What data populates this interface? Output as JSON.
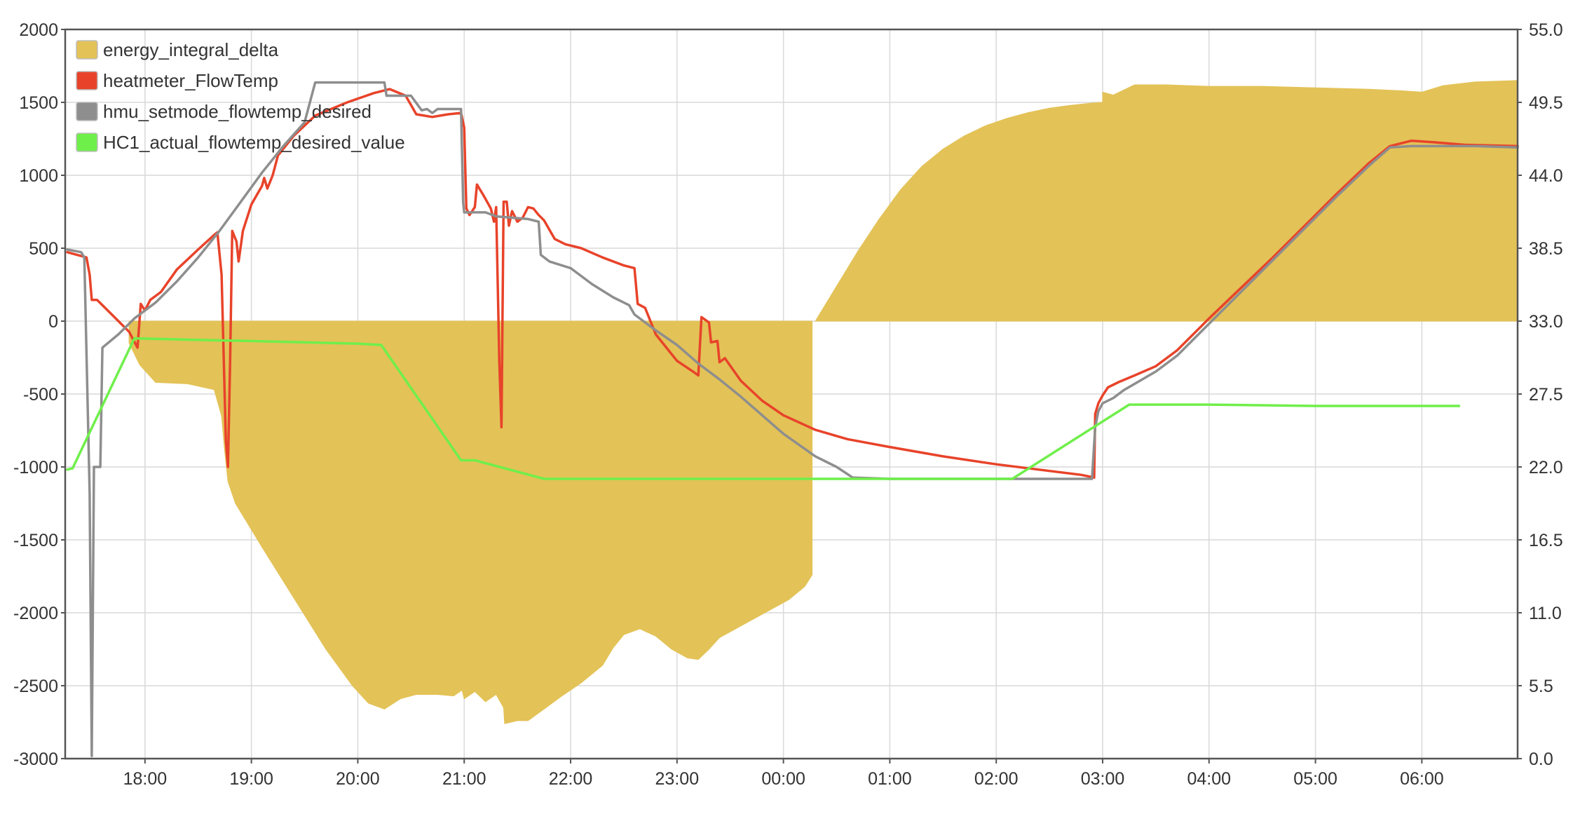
{
  "chart_data": {
    "type": "line",
    "x_ticks": [
      "18:00",
      "19:00",
      "20:00",
      "21:00",
      "22:00",
      "23:00",
      "00:00",
      "01:00",
      "02:00",
      "03:00",
      "04:00",
      "05:00",
      "06:00"
    ],
    "x_range_hours": [
      17.25,
      30.9
    ],
    "y_left": {
      "range": [
        -3000,
        2000
      ],
      "ticks": [
        "2000",
        "1500",
        "1000",
        "500",
        "0",
        "-500",
        "-1000",
        "-1500",
        "-2000",
        "-2500",
        "-3000"
      ]
    },
    "y_right": {
      "range": [
        0,
        55
      ],
      "ticks": [
        "55.0",
        "49.5",
        "44.0",
        "38.5",
        "33.0",
        "27.5",
        "22.0",
        "16.5",
        "11.0",
        "5.5",
        "0.0"
      ]
    },
    "grid": true,
    "legend_position": "top-left",
    "series": [
      {
        "name": "energy_integral_delta",
        "type": "area",
        "axis": "left",
        "color": "#e3c257",
        "points": [
          [
            17.85,
            0
          ],
          [
            17.85,
            -150
          ],
          [
            17.95,
            -300
          ],
          [
            18.1,
            -420
          ],
          [
            18.4,
            -430
          ],
          [
            18.65,
            -470
          ],
          [
            18.72,
            -650
          ],
          [
            18.75,
            -900
          ],
          [
            18.78,
            -1100
          ],
          [
            18.85,
            -1250
          ],
          [
            19.1,
            -1550
          ],
          [
            19.4,
            -1900
          ],
          [
            19.7,
            -2250
          ],
          [
            19.95,
            -2500
          ],
          [
            20.1,
            -2620
          ],
          [
            20.25,
            -2660
          ],
          [
            20.4,
            -2590
          ],
          [
            20.55,
            -2560
          ],
          [
            20.75,
            -2560
          ],
          [
            20.9,
            -2570
          ],
          [
            20.98,
            -2530
          ],
          [
            21.0,
            -2590
          ],
          [
            21.1,
            -2540
          ],
          [
            21.2,
            -2610
          ],
          [
            21.3,
            -2560
          ],
          [
            21.37,
            -2650
          ],
          [
            21.38,
            -2760
          ],
          [
            21.5,
            -2740
          ],
          [
            21.6,
            -2740
          ],
          [
            21.75,
            -2660
          ],
          [
            21.9,
            -2580
          ],
          [
            22.1,
            -2480
          ],
          [
            22.3,
            -2360
          ],
          [
            22.4,
            -2240
          ],
          [
            22.5,
            -2150
          ],
          [
            22.65,
            -2110
          ],
          [
            22.8,
            -2160
          ],
          [
            22.95,
            -2250
          ],
          [
            23.1,
            -2310
          ],
          [
            23.2,
            -2320
          ],
          [
            23.3,
            -2250
          ],
          [
            23.4,
            -2170
          ],
          [
            23.55,
            -2110
          ],
          [
            23.8,
            -2010
          ],
          [
            24.05,
            -1910
          ],
          [
            24.2,
            -1820
          ],
          [
            24.27,
            -1740
          ],
          [
            24.27,
            0
          ]
        ],
        "points_positive": [
          [
            24.3,
            0
          ],
          [
            24.5,
            240
          ],
          [
            24.7,
            480
          ],
          [
            24.9,
            700
          ],
          [
            25.1,
            900
          ],
          [
            25.3,
            1060
          ],
          [
            25.5,
            1180
          ],
          [
            25.7,
            1270
          ],
          [
            25.9,
            1340
          ],
          [
            26.1,
            1390
          ],
          [
            26.3,
            1430
          ],
          [
            26.5,
            1460
          ],
          [
            26.7,
            1480
          ],
          [
            26.9,
            1495
          ],
          [
            27.0,
            1500
          ],
          [
            27.0,
            1570
          ],
          [
            27.1,
            1550
          ],
          [
            27.3,
            1620
          ],
          [
            27.6,
            1620
          ],
          [
            28.0,
            1610
          ],
          [
            28.5,
            1610
          ],
          [
            29.0,
            1600
          ],
          [
            29.5,
            1590
          ],
          [
            29.8,
            1580
          ],
          [
            30.0,
            1570
          ],
          [
            30.2,
            1615
          ],
          [
            30.5,
            1640
          ],
          [
            30.9,
            1650
          ]
        ]
      },
      {
        "name": "heatmeter_FlowTemp",
        "type": "line",
        "axis": "right",
        "color": "#e8432a",
        "points": [
          [
            17.27,
            38.2
          ],
          [
            17.45,
            37.8
          ],
          [
            17.48,
            36.5
          ],
          [
            17.5,
            34.6
          ],
          [
            17.55,
            34.6
          ],
          [
            17.7,
            33.4
          ],
          [
            17.85,
            32.2
          ],
          [
            17.93,
            31.0
          ],
          [
            17.96,
            34.3
          ],
          [
            18.0,
            33.8
          ],
          [
            18.05,
            34.6
          ],
          [
            18.1,
            34.9
          ],
          [
            18.15,
            35.2
          ],
          [
            18.3,
            36.9
          ],
          [
            18.5,
            38.4
          ],
          [
            18.65,
            39.5
          ],
          [
            18.68,
            39.7
          ],
          [
            18.72,
            36.5
          ],
          [
            18.76,
            24.0
          ],
          [
            18.78,
            22.0
          ],
          [
            18.8,
            30.0
          ],
          [
            18.82,
            39.8
          ],
          [
            18.86,
            39.0
          ],
          [
            18.88,
            37.5
          ],
          [
            18.92,
            39.8
          ],
          [
            19.0,
            41.8
          ],
          [
            19.1,
            43.2
          ],
          [
            19.12,
            43.8
          ],
          [
            19.15,
            43.0
          ],
          [
            19.2,
            44.0
          ],
          [
            19.25,
            45.5
          ],
          [
            19.4,
            47.0
          ],
          [
            19.6,
            48.5
          ],
          [
            19.9,
            49.5
          ],
          [
            20.15,
            50.2
          ],
          [
            20.3,
            50.5
          ],
          [
            20.45,
            50.0
          ],
          [
            20.55,
            48.6
          ],
          [
            20.7,
            48.4
          ],
          [
            20.85,
            48.6
          ],
          [
            20.97,
            48.7
          ],
          [
            21.0,
            47.6
          ],
          [
            21.02,
            41.5
          ],
          [
            21.05,
            41.0
          ],
          [
            21.1,
            41.6
          ],
          [
            21.12,
            43.3
          ],
          [
            21.18,
            42.5
          ],
          [
            21.25,
            41.5
          ],
          [
            21.28,
            40.5
          ],
          [
            21.3,
            41.6
          ],
          [
            21.33,
            30.0
          ],
          [
            21.35,
            25.0
          ],
          [
            21.37,
            42.0
          ],
          [
            21.4,
            42.0
          ],
          [
            21.42,
            40.2
          ],
          [
            21.45,
            41.3
          ],
          [
            21.5,
            40.5
          ],
          [
            21.55,
            40.8
          ],
          [
            21.6,
            41.6
          ],
          [
            21.65,
            41.5
          ],
          [
            21.7,
            41.0
          ],
          [
            21.75,
            40.6
          ],
          [
            21.85,
            39.2
          ],
          [
            21.95,
            38.8
          ],
          [
            22.1,
            38.5
          ],
          [
            22.3,
            37.8
          ],
          [
            22.5,
            37.2
          ],
          [
            22.6,
            37.0
          ],
          [
            22.63,
            34.3
          ],
          [
            22.7,
            34.0
          ],
          [
            22.8,
            32.0
          ],
          [
            23.0,
            30.0
          ],
          [
            23.15,
            29.2
          ],
          [
            23.2,
            28.9
          ],
          [
            23.23,
            33.3
          ],
          [
            23.3,
            32.9
          ],
          [
            23.32,
            31.4
          ],
          [
            23.38,
            31.5
          ],
          [
            23.4,
            29.9
          ],
          [
            23.45,
            30.2
          ],
          [
            23.6,
            28.5
          ],
          [
            23.8,
            27.0
          ],
          [
            24.0,
            25.9
          ],
          [
            24.3,
            24.8
          ],
          [
            24.6,
            24.1
          ],
          [
            25.0,
            23.5
          ],
          [
            25.5,
            22.8
          ],
          [
            26.0,
            22.2
          ],
          [
            26.5,
            21.7
          ],
          [
            26.8,
            21.4
          ],
          [
            26.92,
            21.2
          ],
          [
            26.93,
            26.0
          ],
          [
            26.96,
            26.8
          ],
          [
            27.0,
            27.4
          ],
          [
            27.05,
            28.0
          ],
          [
            27.15,
            28.4
          ],
          [
            27.3,
            28.9
          ],
          [
            27.5,
            29.6
          ],
          [
            27.7,
            30.8
          ],
          [
            28.0,
            33.2
          ],
          [
            28.3,
            35.5
          ],
          [
            28.6,
            37.8
          ],
          [
            28.9,
            40.2
          ],
          [
            29.2,
            42.6
          ],
          [
            29.5,
            44.9
          ],
          [
            29.7,
            46.2
          ],
          [
            29.9,
            46.6
          ],
          [
            30.1,
            46.5
          ],
          [
            30.4,
            46.3
          ],
          [
            30.9,
            46.2
          ]
        ]
      },
      {
        "name": "hmu_setmode_flowtemp_desired",
        "type": "line",
        "axis": "right",
        "color": "#8e8e8e",
        "points": [
          [
            17.27,
            38.4
          ],
          [
            17.4,
            38.2
          ],
          [
            17.43,
            37.8
          ],
          [
            17.48,
            20.0
          ],
          [
            17.5,
            0.2
          ],
          [
            17.52,
            22.0
          ],
          [
            17.58,
            22.0
          ],
          [
            17.6,
            31.0
          ],
          [
            17.75,
            32.0
          ],
          [
            17.9,
            33.2
          ],
          [
            18.1,
            34.4
          ],
          [
            18.3,
            36.0
          ],
          [
            18.5,
            37.8
          ],
          [
            18.7,
            39.8
          ],
          [
            18.9,
            42.0
          ],
          [
            19.1,
            44.2
          ],
          [
            19.3,
            46.2
          ],
          [
            19.5,
            48.0
          ],
          [
            19.6,
            51.0
          ],
          [
            20.25,
            51.0
          ],
          [
            20.27,
            50.0
          ],
          [
            20.5,
            50.0
          ],
          [
            20.6,
            48.9
          ],
          [
            20.65,
            49.0
          ],
          [
            20.7,
            48.7
          ],
          [
            20.75,
            49.0
          ],
          [
            20.97,
            49.0
          ],
          [
            20.99,
            42.0
          ],
          [
            21.0,
            41.2
          ],
          [
            21.2,
            41.2
          ],
          [
            21.3,
            40.9
          ],
          [
            21.6,
            40.7
          ],
          [
            21.7,
            40.5
          ],
          [
            21.72,
            38.0
          ],
          [
            21.8,
            37.5
          ],
          [
            22.0,
            37.0
          ],
          [
            22.2,
            35.8
          ],
          [
            22.4,
            34.8
          ],
          [
            22.55,
            34.2
          ],
          [
            22.6,
            33.5
          ],
          [
            22.8,
            32.3
          ],
          [
            23.0,
            31.2
          ],
          [
            23.2,
            29.8
          ],
          [
            23.4,
            28.6
          ],
          [
            23.6,
            27.3
          ],
          [
            23.8,
            25.9
          ],
          [
            24.0,
            24.5
          ],
          [
            24.3,
            22.8
          ],
          [
            24.5,
            22.0
          ],
          [
            24.65,
            21.2
          ],
          [
            25.0,
            21.1
          ],
          [
            25.5,
            21.1
          ],
          [
            26.0,
            21.1
          ],
          [
            26.5,
            21.1
          ],
          [
            26.9,
            21.1
          ],
          [
            26.93,
            25.0
          ],
          [
            26.96,
            26.2
          ],
          [
            27.0,
            26.8
          ],
          [
            27.1,
            27.2
          ],
          [
            27.2,
            27.8
          ],
          [
            27.5,
            29.2
          ],
          [
            27.7,
            30.4
          ],
          [
            28.0,
            32.8
          ],
          [
            28.3,
            35.2
          ],
          [
            28.6,
            37.6
          ],
          [
            28.9,
            40.0
          ],
          [
            29.2,
            42.4
          ],
          [
            29.5,
            44.7
          ],
          [
            29.7,
            46.1
          ],
          [
            29.9,
            46.2
          ],
          [
            30.2,
            46.2
          ],
          [
            30.5,
            46.2
          ],
          [
            30.9,
            46.1
          ]
        ]
      },
      {
        "name": "HC1_actual_flowtemp_desired_value",
        "type": "line",
        "axis": "right",
        "color": "#6fef4a",
        "points": [
          [
            17.27,
            21.8
          ],
          [
            17.32,
            21.9
          ],
          [
            17.9,
            31.7
          ],
          [
            18.4,
            31.6
          ],
          [
            19.0,
            31.5
          ],
          [
            19.5,
            31.4
          ],
          [
            20.0,
            31.3
          ],
          [
            20.22,
            31.2
          ],
          [
            20.97,
            22.5
          ],
          [
            21.1,
            22.5
          ],
          [
            21.75,
            21.1
          ],
          [
            22.0,
            21.1
          ],
          [
            23.0,
            21.1
          ],
          [
            24.0,
            21.1
          ],
          [
            25.0,
            21.1
          ],
          [
            26.0,
            21.1
          ],
          [
            26.15,
            21.1
          ],
          [
            27.25,
            26.7
          ],
          [
            28.0,
            26.7
          ],
          [
            29.0,
            26.6
          ],
          [
            30.0,
            26.6
          ],
          [
            30.35,
            26.6
          ]
        ]
      }
    ]
  }
}
